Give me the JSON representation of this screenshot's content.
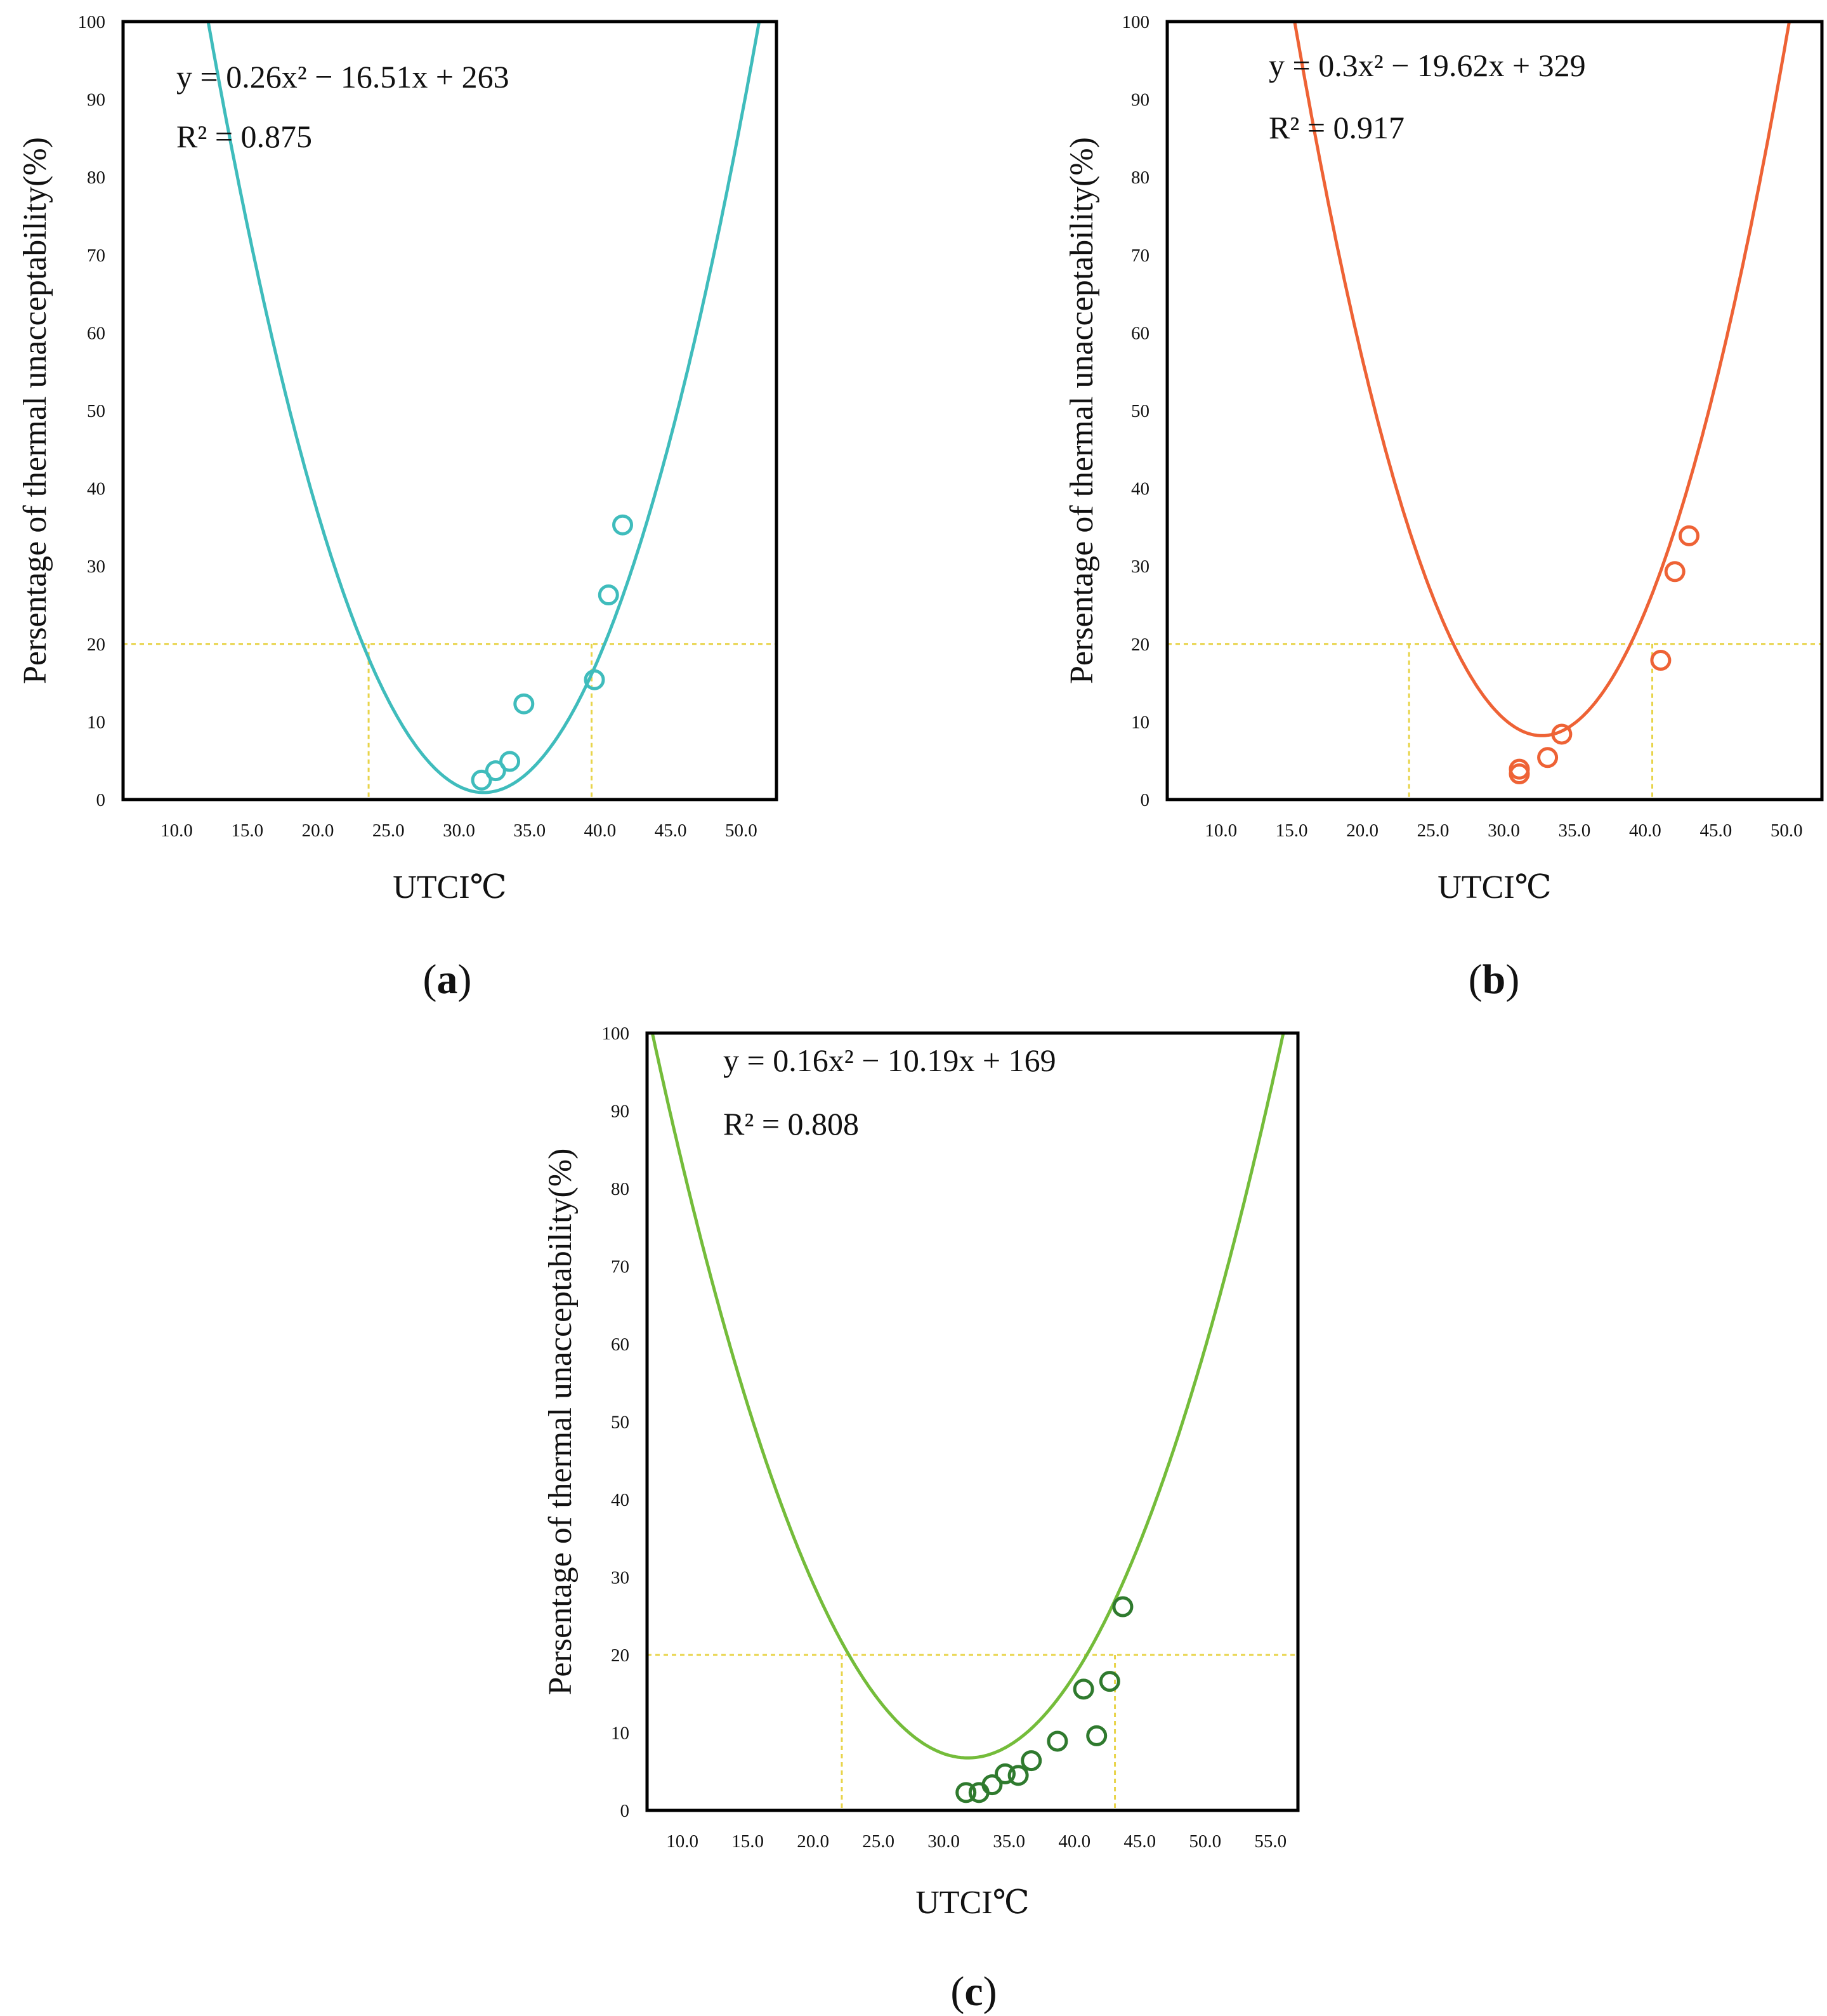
{
  "chart_data": [
    {
      "id": "a",
      "type": "scatter",
      "panel_label": "a",
      "color": "#3fbcbc",
      "marker_color": "#3fbcbc",
      "threshold_color": "#e8d44a",
      "equation": "y = 0.26x² − 16.51x + 263",
      "r2": "R² = 0.875",
      "coefficients": [
        0.26,
        -16.51,
        263
      ],
      "xlabel": "UTCI℃",
      "ylabel": "Persentage of thermal unacceptability(%)",
      "xlim": [
        6.2,
        52.5
      ],
      "ylim": [
        0,
        100
      ],
      "xticks": [
        "10.0",
        "15.0",
        "20.0",
        "25.0",
        "30.0",
        "35.0",
        "40.0",
        "45.0",
        "50.0"
      ],
      "xtick_values": [
        10,
        15,
        20,
        25,
        30,
        35,
        40,
        45,
        50
      ],
      "yticks": [
        "0",
        "10",
        "20",
        "30",
        "40",
        "50",
        "60",
        "70",
        "80",
        "90",
        "100"
      ],
      "ytick_values": [
        0,
        10,
        20,
        30,
        40,
        50,
        60,
        70,
        80,
        90,
        100
      ],
      "threshold_y": 20,
      "crossings_x": [
        23.6,
        39.4
      ],
      "points": [
        [
          31.6,
          2.5
        ],
        [
          32.6,
          3.7
        ],
        [
          33.6,
          4.9
        ],
        [
          34.6,
          12.3
        ],
        [
          39.6,
          15.4
        ],
        [
          40.6,
          26.3
        ],
        [
          41.6,
          35.3
        ]
      ]
    },
    {
      "id": "b",
      "type": "scatter",
      "panel_label": "b",
      "color": "#ee6235",
      "marker_color": "#ee6235",
      "threshold_color": "#e8d44a",
      "equation": "y = 0.3x² − 19.62x + 329",
      "r2": "R² = 0.917",
      "coefficients": [
        0.3,
        -19.62,
        329
      ],
      "xlabel": "UTCI℃",
      "ylabel": "Persentage of thermal unacceptability(%)",
      "xlim": [
        6.2,
        52.5
      ],
      "ylim": [
        0,
        100
      ],
      "xticks": [
        "10.0",
        "15.0",
        "20.0",
        "25.0",
        "30.0",
        "35.0",
        "40.0",
        "45.0",
        "50.0"
      ],
      "xtick_values": [
        10,
        15,
        20,
        25,
        30,
        35,
        40,
        45,
        50
      ],
      "yticks": [
        "0",
        "10",
        "20",
        "30",
        "40",
        "50",
        "60",
        "70",
        "80",
        "90",
        "100"
      ],
      "ytick_values": [
        0,
        10,
        20,
        30,
        40,
        50,
        60,
        70,
        80,
        90,
        100
      ],
      "threshold_y": 20,
      "crossings_x": [
        23.3,
        40.5
      ],
      "points": [
        [
          31.1,
          3.3
        ],
        [
          31.1,
          3.9
        ],
        [
          33.1,
          5.4
        ],
        [
          34.1,
          8.4
        ],
        [
          41.1,
          17.9
        ],
        [
          42.1,
          29.3
        ],
        [
          43.1,
          33.9
        ]
      ]
    },
    {
      "id": "c",
      "type": "scatter",
      "panel_label": "c",
      "color": "#74bc3a",
      "marker_color": "#2f7a2e",
      "threshold_color": "#e8d44a",
      "equation": "y = 0.16x² − 10.19x + 169",
      "r2": "R² = 0.808",
      "coefficients": [
        0.16,
        -10.19,
        169
      ],
      "xlabel": "UTCI℃",
      "ylabel": "Persentage of thermal unacceptability(%)",
      "xlim": [
        7.3,
        57.1
      ],
      "ylim": [
        0,
        100
      ],
      "xticks": [
        "10.0",
        "15.0",
        "20.0",
        "25.0",
        "30.0",
        "35.0",
        "40.0",
        "45.0",
        "50.0",
        "55.0"
      ],
      "xtick_values": [
        10,
        15,
        20,
        25,
        30,
        35,
        40,
        45,
        50,
        55
      ],
      "yticks": [
        "0",
        "10",
        "20",
        "30",
        "40",
        "50",
        "60",
        "70",
        "80",
        "90",
        "100"
      ],
      "ytick_values": [
        0,
        10,
        20,
        30,
        40,
        50,
        60,
        70,
        80,
        90,
        100
      ],
      "threshold_y": 20,
      "crossings_x": [
        22.2,
        43.1
      ],
      "points": [
        [
          31.7,
          2.3
        ],
        [
          32.7,
          2.3
        ],
        [
          33.7,
          3.3
        ],
        [
          34.7,
          4.7
        ],
        [
          35.7,
          4.5
        ],
        [
          36.7,
          6.4
        ],
        [
          38.7,
          8.9
        ],
        [
          40.7,
          15.6
        ],
        [
          41.7,
          9.6
        ],
        [
          42.7,
          16.6
        ],
        [
          43.7,
          26.2
        ]
      ]
    }
  ]
}
